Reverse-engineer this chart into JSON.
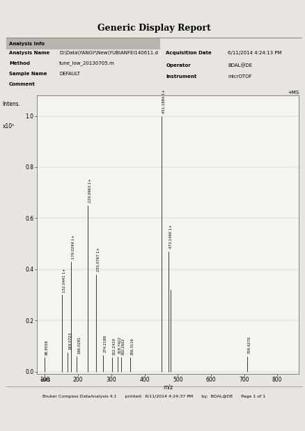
{
  "title": "Generic Display Report",
  "header_info": {
    "analysis_info": "Analysis Info",
    "analysis_name_label": "Analysis Name",
    "analysis_name_val": "D:\\Data\\YANGY\\New\\YUBIANFEI140611.d",
    "method_label": "Method",
    "method_val": "tune_low_20130705.m",
    "sample_name_label": "Sample Name",
    "sample_name_val": "DEFAULT",
    "comment_label": "Comment",
    "acq_date_label": "Acquisition Date",
    "acq_date_val": "6/11/2014 4:24:13 PM",
    "operator_label": "Operator",
    "operator_val": "BDAL@DE",
    "instrument_label": "Instrument",
    "instrument_val": "micrOTOF"
  },
  "footer": "Bruker Compass DataAnalysis 4.1      printed:  6/11/2014 4:24:37 PM      by:  BDAL@DE      Page 1 of 1",
  "ylabel_line1": "Intens.",
  "ylabel_line2": "x10⁵",
  "xlabel": "m/z",
  "ms_label": "+MS",
  "ms_corner": "+MS",
  "ylim": [
    0.0,
    1.08
  ],
  "yticks": [
    0.0,
    0.2,
    0.4,
    0.6,
    0.8,
    1.0
  ],
  "xlim": [
    75,
    865
  ],
  "xticks": [
    100,
    200,
    300,
    400,
    500,
    600,
    700,
    800
  ],
  "peaks": [
    {
      "mz": 98.9558,
      "intensity": 0.055,
      "label": "98.9558",
      "show_label": true,
      "labeled": false
    },
    {
      "mz": 169.0723,
      "intensity": 0.075,
      "label": "169.0723",
      "show_label": true,
      "labeled": false
    },
    {
      "mz": 196.0281,
      "intensity": 0.06,
      "label": "196.0281",
      "show_label": true,
      "labeled": false
    },
    {
      "mz": 152.0441,
      "intensity": 0.3,
      "label": "152.0441 1+",
      "show_label": true,
      "labeled": true
    },
    {
      "mz": 179.0249,
      "intensity": 0.43,
      "label": "179.0249 1+",
      "show_label": true,
      "labeled": true
    },
    {
      "mz": 229.0963,
      "intensity": 0.65,
      "label": "229.0963 1+",
      "show_label": true,
      "labeled": true
    },
    {
      "mz": 255.0767,
      "intensity": 0.38,
      "label": "255.0767 1+",
      "show_label": true,
      "labeled": true
    },
    {
      "mz": 274.2188,
      "intensity": 0.065,
      "label": "274.2188",
      "show_label": true,
      "labeled": false
    },
    {
      "mz": 302.2419,
      "intensity": 0.055,
      "label": "302.2419",
      "show_label": true,
      "labeled": false
    },
    {
      "mz": 318.7422,
      "intensity": 0.06,
      "label": "318.7422",
      "show_label": true,
      "labeled": false
    },
    {
      "mz": 330.2602,
      "intensity": 0.055,
      "label": "330.2602",
      "show_label": true,
      "labeled": false
    },
    {
      "mz": 356.3116,
      "intensity": 0.055,
      "label": "356.3116",
      "show_label": true,
      "labeled": false
    },
    {
      "mz": 451.1884,
      "intensity": 1.0,
      "label": "451.1884 1+",
      "show_label": true,
      "labeled": true
    },
    {
      "mz": 473.149,
      "intensity": 0.47,
      "label": "473.1490 1+",
      "show_label": true,
      "labeled": true
    },
    {
      "mz": 479.5,
      "intensity": 0.32,
      "label": "",
      "show_label": false,
      "labeled": false
    },
    {
      "mz": 709.427,
      "intensity": 0.06,
      "label": "709.4270",
      "show_label": true,
      "labeled": false
    }
  ],
  "bg_color": "#e8e5e0",
  "plot_bg_color": "#f5f4f1",
  "bar_color": "#1a1a1a",
  "title_bg": "#ffffff",
  "header_bg": "#c8c4be",
  "sep_line_color": "#888880",
  "plot_border_color": "#555550"
}
